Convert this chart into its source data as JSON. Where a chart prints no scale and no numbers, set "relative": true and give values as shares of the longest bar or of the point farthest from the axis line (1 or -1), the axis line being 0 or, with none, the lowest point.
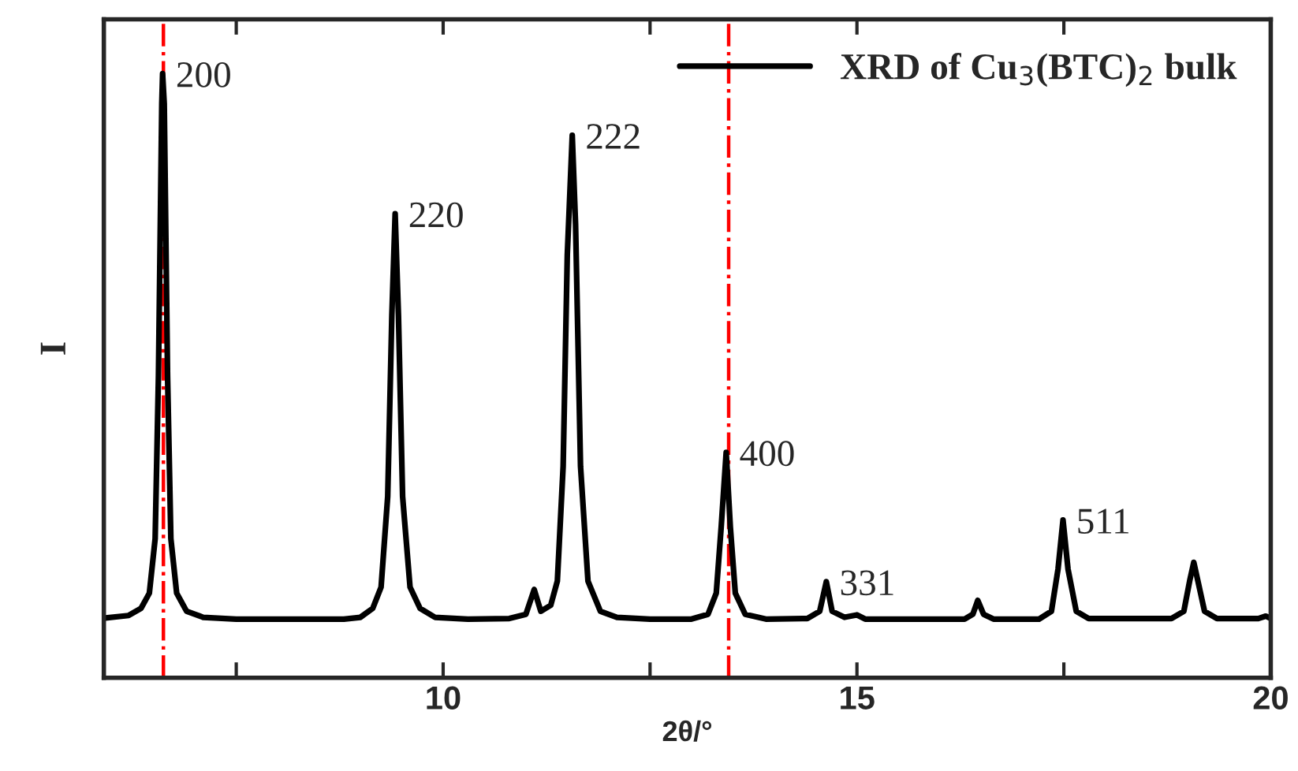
{
  "chart_data": {
    "type": "line",
    "relative": true,
    "xlabel": "2θ/°",
    "ylabel": "I",
    "xlim": [
      5.9,
      20
    ],
    "xticks": [
      {
        "value": 7.5,
        "label": null
      },
      10,
      {
        "value": 12.5,
        "label": null
      },
      15,
      {
        "value": 17.5,
        "label": null
      },
      20
    ],
    "legend": "top right",
    "grid": false,
    "tick_labels": "x",
    "series": [
      {
        "name": "XRD of Cu$_{3}$(BTC)$_{2}$ bulk",
        "color": "#000000",
        "x": [
          5.92,
          6.2,
          6.35,
          6.45,
          6.52,
          6.56,
          6.6,
          6.61,
          6.63,
          6.67,
          6.71,
          6.78,
          6.9,
          7.1,
          7.5,
          8.8,
          9.0,
          9.15,
          9.25,
          9.33,
          9.38,
          9.42,
          9.46,
          9.51,
          9.6,
          9.72,
          9.9,
          10.3,
          10.8,
          11.0,
          11.1,
          11.18,
          11.3,
          11.38,
          11.45,
          11.5,
          11.56,
          11.6,
          11.66,
          11.75,
          11.9,
          12.1,
          12.5,
          13.0,
          13.2,
          13.3,
          13.36,
          13.42,
          13.47,
          13.53,
          13.65,
          13.9,
          14.4,
          14.55,
          14.63,
          14.7,
          14.85,
          15.0,
          15.1,
          16.3,
          16.4,
          16.46,
          16.53,
          16.65,
          17.2,
          17.35,
          17.43,
          17.49,
          17.55,
          17.65,
          17.8,
          18.8,
          18.95,
          19.02,
          19.07,
          19.12,
          19.2,
          19.35,
          19.85,
          19.94,
          20.0
        ],
        "values": [
          0.099,
          0.103,
          0.115,
          0.14,
          0.23,
          0.5,
          0.95,
          1.0,
          0.95,
          0.5,
          0.23,
          0.14,
          0.11,
          0.1,
          0.097,
          0.097,
          0.1,
          0.115,
          0.15,
          0.3,
          0.6,
          0.768,
          0.6,
          0.3,
          0.15,
          0.115,
          0.1,
          0.097,
          0.098,
          0.105,
          0.146,
          0.11,
          0.12,
          0.16,
          0.35,
          0.7,
          0.898,
          0.75,
          0.35,
          0.16,
          0.11,
          0.1,
          0.097,
          0.097,
          0.105,
          0.14,
          0.25,
          0.373,
          0.25,
          0.14,
          0.105,
          0.097,
          0.098,
          0.11,
          0.159,
          0.11,
          0.1,
          0.104,
          0.097,
          0.097,
          0.105,
          0.128,
          0.105,
          0.097,
          0.097,
          0.11,
          0.18,
          0.261,
          0.18,
          0.11,
          0.098,
          0.098,
          0.11,
          0.16,
          0.191,
          0.16,
          0.11,
          0.098,
          0.098,
          0.102,
          0.098
        ]
      }
    ],
    "ref_lines": [
      {
        "axis": "x",
        "value": 6.62,
        "color": "#ff0000",
        "line_style": "dashdot"
      },
      {
        "axis": "x",
        "value": 13.45,
        "color": "#ff0000",
        "line_style": "dashdot"
      }
    ],
    "annotations": [
      {
        "text": "200",
        "x": 6.61,
        "y": 1.0
      },
      {
        "text": "220",
        "x": 9.42,
        "y": 0.768
      },
      {
        "text": "222",
        "x": 11.56,
        "y": 0.898
      },
      {
        "text": "400",
        "x": 13.42,
        "y": 0.373
      },
      {
        "text": "331",
        "x": 14.63,
        "y": 0.159
      },
      {
        "text": "511",
        "x": 17.49,
        "y": 0.261
      }
    ]
  }
}
